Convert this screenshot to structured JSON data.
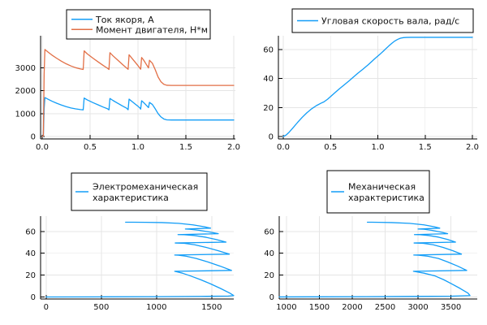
{
  "figure": {
    "background": "#ffffff",
    "grid_color": "#e5e5e5",
    "axis_color": "#000000",
    "text_color": "#111111",
    "series_blue": "#129df7",
    "series_orange": "#e26f46"
  },
  "chart_data": [
    {
      "id": "current-and-torque-vs-time",
      "type": "line",
      "title": "",
      "xlabel": "",
      "ylabel": "",
      "grid": true,
      "legend_position": "top-center",
      "xlim": [
        0,
        2
      ],
      "ylim": [
        0,
        4400
      ],
      "xticks": [
        "0.0",
        "0.5",
        "1.0",
        "1.5",
        "2.0"
      ],
      "xtick_values": [
        0,
        0.5,
        1,
        1.5,
        2
      ],
      "yticks": [
        "0",
        "1000",
        "2000",
        "3000"
      ],
      "ytick_values": [
        0,
        1000,
        2000,
        3000
      ],
      "legend": {
        "entries": [
          {
            "lines": [
              "Ток якоря, А"
            ],
            "color": "#129df7"
          },
          {
            "lines": [
              "Момент двигателя, Н*м"
            ],
            "color": "#e26f46"
          }
        ]
      },
      "series": [
        {
          "name": "Ток якоря, А",
          "color": "#129df7",
          "points": [
            [
              0,
              0
            ],
            [
              0.012,
              10
            ],
            [
              0.02,
              1200
            ],
            [
              0.028,
              1700
            ],
            [
              0.06,
              1630
            ],
            [
              0.1,
              1545
            ],
            [
              0.15,
              1455
            ],
            [
              0.2,
              1375
            ],
            [
              0.25,
              1305
            ],
            [
              0.3,
              1248
            ],
            [
              0.35,
              1205
            ],
            [
              0.4,
              1175
            ],
            [
              0.428,
              1165
            ],
            [
              0.438,
              1680
            ],
            [
              0.47,
              1600
            ],
            [
              0.53,
              1480
            ],
            [
              0.59,
              1370
            ],
            [
              0.64,
              1280
            ],
            [
              0.68,
              1215
            ],
            [
              0.697,
              1165
            ],
            [
              0.707,
              1660
            ],
            [
              0.74,
              1570
            ],
            [
              0.79,
              1450
            ],
            [
              0.84,
              1330
            ],
            [
              0.88,
              1240
            ],
            [
              0.897,
              1170
            ],
            [
              0.907,
              1630
            ],
            [
              0.94,
              1520
            ],
            [
              0.97,
              1420
            ],
            [
              1.0,
              1320
            ],
            [
              1.02,
              1245
            ],
            [
              1.028,
              1195
            ],
            [
              1.038,
              1560
            ],
            [
              1.06,
              1480
            ],
            [
              1.09,
              1350
            ],
            [
              1.11,
              1262
            ],
            [
              1.12,
              1490
            ],
            [
              1.15,
              1400
            ],
            [
              1.18,
              1210
            ],
            [
              1.21,
              1000
            ],
            [
              1.24,
              855
            ],
            [
              1.27,
              765
            ],
            [
              1.3,
              728
            ],
            [
              1.35,
              720
            ],
            [
              1.5,
              720
            ],
            [
              2,
              720
            ]
          ]
        },
        {
          "name": "Момент двигателя, Н*м",
          "color": "#e26f46",
          "points": [
            [
              0,
              0
            ],
            [
              0.012,
              20
            ],
            [
              0.02,
              2700
            ],
            [
              0.028,
              3800
            ],
            [
              0.06,
              3690
            ],
            [
              0.1,
              3560
            ],
            [
              0.15,
              3420
            ],
            [
              0.2,
              3290
            ],
            [
              0.25,
              3175
            ],
            [
              0.3,
              3080
            ],
            [
              0.35,
              3005
            ],
            [
              0.4,
              2950
            ],
            [
              0.428,
              2930
            ],
            [
              0.438,
              3740
            ],
            [
              0.47,
              3610
            ],
            [
              0.53,
              3420
            ],
            [
              0.59,
              3240
            ],
            [
              0.64,
              3095
            ],
            [
              0.68,
              2985
            ],
            [
              0.697,
              2930
            ],
            [
              0.707,
              3660
            ],
            [
              0.74,
              3520
            ],
            [
              0.79,
              3330
            ],
            [
              0.84,
              3140
            ],
            [
              0.88,
              2995
            ],
            [
              0.897,
              2935
            ],
            [
              0.907,
              3570
            ],
            [
              0.94,
              3400
            ],
            [
              0.97,
              3250
            ],
            [
              1.0,
              3095
            ],
            [
              1.02,
              2980
            ],
            [
              1.028,
              2940
            ],
            [
              1.038,
              3450
            ],
            [
              1.06,
              3330
            ],
            [
              1.09,
              3130
            ],
            [
              1.11,
              2995
            ],
            [
              1.12,
              3330
            ],
            [
              1.15,
              3200
            ],
            [
              1.18,
              2920
            ],
            [
              1.21,
              2600
            ],
            [
              1.24,
              2390
            ],
            [
              1.27,
              2280
            ],
            [
              1.3,
              2238
            ],
            [
              1.35,
              2230
            ],
            [
              1.5,
              2230
            ],
            [
              2,
              2230
            ]
          ]
        }
      ]
    },
    {
      "id": "angular-velocity-vs-time",
      "type": "line",
      "title": "",
      "xlabel": "",
      "ylabel": "",
      "grid": true,
      "legend_position": "top-center",
      "xlim": [
        0,
        2
      ],
      "ylim": [
        0,
        69.5
      ],
      "xticks": [
        "0.0",
        "0.5",
        "1.0",
        "1.5",
        "2.0"
      ],
      "xtick_values": [
        0,
        0.5,
        1,
        1.5,
        2
      ],
      "yticks": [
        "0",
        "20",
        "40",
        "60"
      ],
      "ytick_values": [
        0,
        20,
        40,
        60
      ],
      "legend": {
        "entries": [
          {
            "lines": [
              "Угловая скорость вала, рад/с"
            ],
            "color": "#129df7"
          }
        ]
      },
      "series": [
        {
          "name": "Угловая скорость вала, рад/с",
          "color": "#129df7",
          "points": [
            [
              0,
              0
            ],
            [
              0.03,
              1
            ],
            [
              0.06,
              2.8
            ],
            [
              0.1,
              5.8
            ],
            [
              0.15,
              9.6
            ],
            [
              0.2,
              13.2
            ],
            [
              0.25,
              16.4
            ],
            [
              0.3,
              19.1
            ],
            [
              0.35,
              21.3
            ],
            [
              0.4,
              23
            ],
            [
              0.43,
              23.9
            ],
            [
              0.47,
              25.8
            ],
            [
              0.53,
              29.3
            ],
            [
              0.59,
              32.7
            ],
            [
              0.64,
              35.4
            ],
            [
              0.7,
              38.6
            ],
            [
              0.74,
              40.9
            ],
            [
              0.79,
              43.7
            ],
            [
              0.84,
              46.3
            ],
            [
              0.9,
              49.6
            ],
            [
              0.94,
              52
            ],
            [
              0.97,
              53.8
            ],
            [
              1.0,
              55.5
            ],
            [
              1.03,
              57.2
            ],
            [
              1.06,
              59
            ],
            [
              1.09,
              60.9
            ],
            [
              1.115,
              62.4
            ],
            [
              1.15,
              64.4
            ],
            [
              1.18,
              65.9
            ],
            [
              1.21,
              67
            ],
            [
              1.24,
              67.8
            ],
            [
              1.27,
              68.2
            ],
            [
              1.3,
              68.35
            ],
            [
              1.35,
              68.4
            ],
            [
              1.5,
              68.4
            ],
            [
              2,
              68.4
            ]
          ]
        }
      ]
    },
    {
      "id": "electromechanical-characteristic",
      "type": "line",
      "title": "",
      "xlabel": "",
      "ylabel": "",
      "grid": true,
      "legend_position": "top-center",
      "xlim": [
        -50,
        1700
      ],
      "ylim": [
        0,
        74
      ],
      "xticks": [
        "0",
        "500",
        "1000",
        "1500"
      ],
      "xtick_values": [
        0,
        500,
        1000,
        1500
      ],
      "yticks": [
        "0",
        "20",
        "40",
        "60"
      ],
      "ytick_values": [
        0,
        20,
        40,
        60
      ],
      "legend": {
        "entries": [
          {
            "lines": [
              "Электромеханическая",
              "характеристика"
            ],
            "color": "#129df7"
          }
        ]
      },
      "series": [
        {
          "name": "Электромеханическая характеристика",
          "color": "#129df7",
          "points": [
            [
              0,
              0
            ],
            [
              500,
              0.12
            ],
            [
              1000,
              0.3
            ],
            [
              1400,
              0.55
            ],
            [
              1650,
              0.85
            ],
            [
              1700,
              1.3
            ],
            [
              1665,
              3.5
            ],
            [
              1580,
              7.8
            ],
            [
              1490,
              12
            ],
            [
              1400,
              15.8
            ],
            [
              1310,
              19.2
            ],
            [
              1235,
              21.8
            ],
            [
              1165,
              23.5
            ],
            [
              1680,
              24.3
            ],
            [
              1575,
              28.3
            ],
            [
              1465,
              32.1
            ],
            [
              1360,
              35.2
            ],
            [
              1270,
              37.3
            ],
            [
              1200,
              38.2
            ],
            [
              1165,
              38.4
            ],
            [
              1660,
              39.2
            ],
            [
              1560,
              42.3
            ],
            [
              1450,
              45.4
            ],
            [
              1345,
              47.8
            ],
            [
              1255,
              49.1
            ],
            [
              1170,
              49.4
            ],
            [
              1630,
              50.2
            ],
            [
              1540,
              52.6
            ],
            [
              1440,
              54.8
            ],
            [
              1340,
              56.3
            ],
            [
              1250,
              57
            ],
            [
              1195,
              57.1
            ],
            [
              1560,
              57.9
            ],
            [
              1480,
              59.5
            ],
            [
              1390,
              61
            ],
            [
              1300,
              62
            ],
            [
              1262,
              62.2
            ],
            [
              1490,
              63
            ],
            [
              1430,
              64.3
            ],
            [
              1330,
              66
            ],
            [
              1200,
              67.4
            ],
            [
              1050,
              68.1
            ],
            [
              900,
              68.35
            ],
            [
              790,
              68.4
            ],
            [
              720,
              68.4
            ]
          ]
        }
      ]
    },
    {
      "id": "mechanical-characteristic",
      "type": "line",
      "title": "",
      "xlabel": "",
      "ylabel": "",
      "grid": true,
      "legend_position": "top-center",
      "xlim": [
        890,
        3900
      ],
      "ylim": [
        0,
        74
      ],
      "xticks": [
        "1000",
        "1500",
        "2000",
        "2500",
        "3000",
        "3500"
      ],
      "xtick_values": [
        1000,
        1500,
        2000,
        2500,
        3000,
        3500
      ],
      "yticks": [
        "0",
        "20",
        "40",
        "60"
      ],
      "ytick_values": [
        0,
        20,
        40,
        60
      ],
      "legend": {
        "entries": [
          {
            "lines": [
              "Механическая",
              "характеристика"
            ],
            "color": "#129df7"
          }
        ]
      },
      "series": [
        {
          "name": "Механическая характеристика",
          "color": "#129df7",
          "points": [
            [
              890,
              0.05
            ],
            [
              1500,
              0.15
            ],
            [
              2200,
              0.3
            ],
            [
              2900,
              0.5
            ],
            [
              3500,
              0.75
            ],
            [
              3790,
              1.3
            ],
            [
              3760,
              3.5
            ],
            [
              3640,
              7.8
            ],
            [
              3510,
              12
            ],
            [
              3390,
              15.8
            ],
            [
              3260,
              19.2
            ],
            [
              3090,
              21.8
            ],
            [
              2930,
              23.5
            ],
            [
              3740,
              24.3
            ],
            [
              3600,
              28.3
            ],
            [
              3450,
              32.1
            ],
            [
              3310,
              35.2
            ],
            [
              3150,
              37.3
            ],
            [
              3010,
              38.2
            ],
            [
              2935,
              38.4
            ],
            [
              3660,
              39.2
            ],
            [
              3530,
              42.3
            ],
            [
              3380,
              45.4
            ],
            [
              3230,
              47.8
            ],
            [
              3080,
              49.1
            ],
            [
              2940,
              49.4
            ],
            [
              3570,
              50.2
            ],
            [
              3450,
              52.6
            ],
            [
              3310,
              54.8
            ],
            [
              3160,
              56.3
            ],
            [
              3030,
              57
            ],
            [
              2945,
              57.1
            ],
            [
              3450,
              57.9
            ],
            [
              3340,
              59.5
            ],
            [
              3210,
              61
            ],
            [
              3090,
              62
            ],
            [
              3000,
              62.2
            ],
            [
              3330,
              63
            ],
            [
              3240,
              64.3
            ],
            [
              3090,
              66
            ],
            [
              2870,
              67.4
            ],
            [
              2600,
              68.1
            ],
            [
              2400,
              68.35
            ],
            [
              2300,
              68.4
            ],
            [
              2230,
              68.4
            ]
          ]
        }
      ]
    }
  ]
}
